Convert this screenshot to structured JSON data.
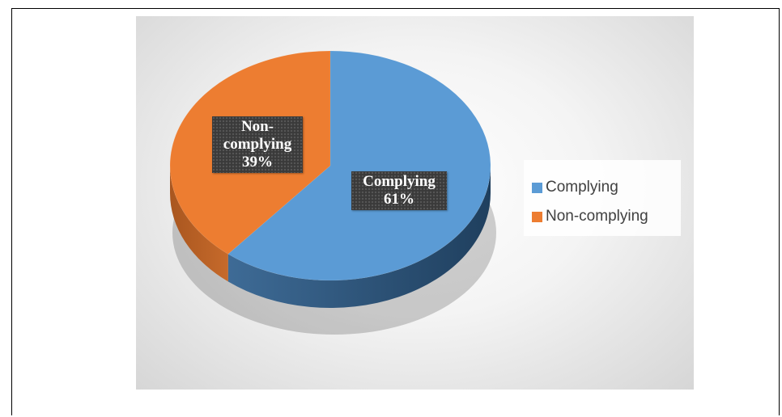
{
  "chart_data": {
    "type": "pie",
    "style": "3d",
    "title": "",
    "categories": [
      "Complying",
      "Non-complying"
    ],
    "values": [
      61,
      39
    ],
    "colors": [
      "#5B9BD5",
      "#ED7D31"
    ],
    "data_labels": [
      {
        "name": "Complying",
        "value": "61%"
      },
      {
        "name": "Non-complying",
        "value": "39%"
      }
    ],
    "legend": {
      "position": "right",
      "entries": [
        "Complying",
        "Non-complying"
      ]
    }
  }
}
